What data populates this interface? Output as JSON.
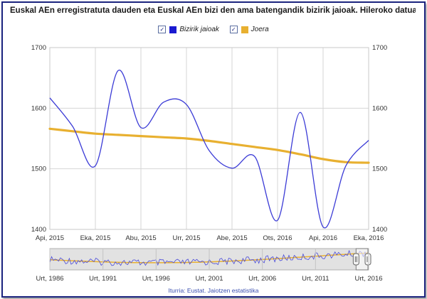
{
  "chart_data": [
    {
      "type": "line",
      "title": "Euskal AEn erregistratuta dauden eta Euskal AEn bizi den ama batengandik bizirik jaioak. Hileroko datuak",
      "xlabel": "",
      "ylabel": "",
      "ylim": [
        1400,
        1700
      ],
      "yticks": [
        1400,
        1500,
        1600,
        1700
      ],
      "xticks": [
        "Api, 2015",
        "Eka, 2015",
        "Abu, 2015",
        "Urr, 2015",
        "Abe, 2015",
        "Ots, 2016",
        "Api, 2016",
        "Eka, 2016"
      ],
      "grid": true,
      "legend_placement": "top-center",
      "series": [
        {
          "name": "Bizirik jaioak",
          "color": "#3b3bd6",
          "x": [
            "Api, 2015",
            "Mai, 2015",
            "Eka, 2015",
            "Uzt, 2015",
            "Abu, 2015",
            "Ira, 2015",
            "Urr, 2015",
            "Aza, 2015",
            "Abe, 2015",
            "Urt, 2016",
            "Ots, 2016",
            "Mar, 2016",
            "Api, 2016",
            "Mai, 2016",
            "Eka, 2016"
          ],
          "values": [
            1617,
            1570,
            1505,
            1662,
            1568,
            1610,
            1606,
            1530,
            1501,
            1520,
            1415,
            1593,
            1404,
            1505,
            1547
          ]
        },
        {
          "name": "Joera",
          "color": "#e8b030",
          "x": [
            "Api, 2015",
            "Mai, 2015",
            "Eka, 2015",
            "Uzt, 2015",
            "Abu, 2015",
            "Ira, 2015",
            "Urr, 2015",
            "Aza, 2015",
            "Abe, 2015",
            "Urt, 2016",
            "Ots, 2016",
            "Mar, 2016",
            "Api, 2016",
            "Mai, 2016",
            "Eka, 2016"
          ],
          "values": [
            1566,
            1562,
            1558,
            1556,
            1554,
            1552,
            1550,
            1546,
            1541,
            1536,
            1531,
            1524,
            1516,
            1511,
            1510
          ]
        }
      ]
    },
    {
      "type": "line",
      "role": "navigator",
      "xticks": [
        "Urt, 1986",
        "Urt, 1991",
        "Urt, 1996",
        "Urt, 2001",
        "Urt, 2006",
        "Urt, 2011",
        "Urt, 2016"
      ],
      "ylim": [
        0,
        1
      ],
      "selected_range": [
        "Api, 2015",
        "Eka, 2016"
      ],
      "series": [
        {
          "name": "Bizirik jaioak",
          "color": "#4a4ad8"
        },
        {
          "name": "Joera",
          "color": "#e8b030"
        }
      ]
    }
  ],
  "source": "Iturria: Eustat. Jaiotzen estatistika",
  "checkbox_mark": "✓"
}
